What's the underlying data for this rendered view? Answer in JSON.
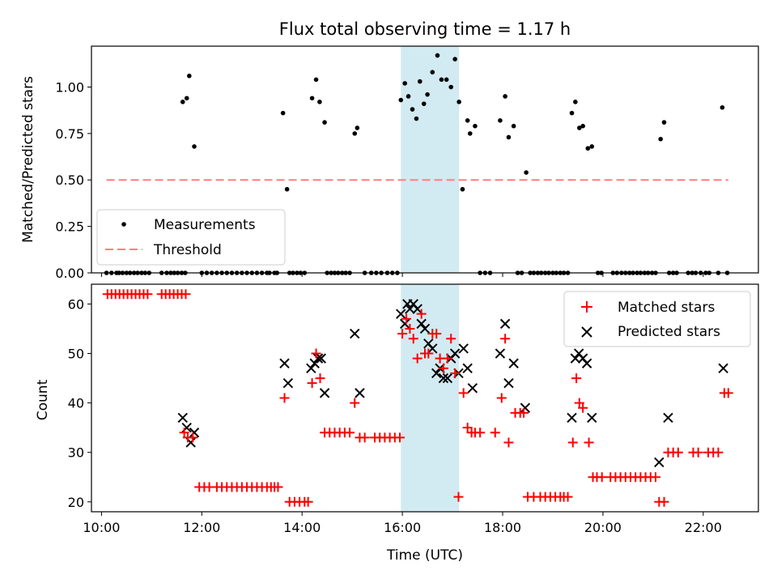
{
  "chart_data": {
    "type": "scatter",
    "title": "Flux total observing time = 1.17 h",
    "xlabel": "Time (UTC)",
    "colors": {
      "measurements": "#000000",
      "threshold": "#ff7f7f",
      "matched": "#ff0000",
      "predicted": "#000000",
      "highlight": "#add8e6"
    },
    "x_ticks": [
      "10:00",
      "12:00",
      "14:00",
      "16:00",
      "18:00",
      "20:00",
      "22:00"
    ],
    "xlim": [
      9.8,
      23.1
    ],
    "highlight_span": [
      15.97,
      17.13
    ],
    "top": {
      "ylabel": "Matched/Predicted stars",
      "ylim": [
        0,
        1.22
      ],
      "y_ticks": [
        "0.00",
        "0.25",
        "0.50",
        "0.75",
        "1.00"
      ],
      "threshold": {
        "name": "Threshold",
        "value": 0.5,
        "x_range": [
          10.1,
          22.5
        ]
      },
      "legend": {
        "placement": "bottom-left",
        "entries": [
          "Measurements",
          "Threshold"
        ]
      },
      "measurements": {
        "name": "Measurements",
        "x": [
          10.1,
          10.2,
          10.3,
          10.35,
          10.42,
          10.5,
          10.57,
          10.65,
          10.72,
          10.8,
          10.87,
          10.95,
          11.2,
          11.3,
          11.38,
          11.45,
          11.52,
          11.6,
          11.67,
          11.62,
          11.7,
          11.75,
          11.85,
          12.0,
          12.1,
          12.2,
          12.3,
          12.4,
          12.5,
          12.6,
          12.7,
          12.8,
          12.9,
          13.0,
          13.1,
          13.2,
          13.3,
          13.35,
          13.45,
          13.5,
          13.62,
          13.7,
          13.75,
          13.82,
          13.9,
          13.97,
          14.05,
          14.2,
          14.28,
          14.35,
          14.45,
          14.5,
          14.58,
          14.65,
          14.72,
          14.8,
          14.87,
          14.95,
          15.05,
          15.1,
          15.25,
          15.38,
          15.48,
          15.58,
          15.7,
          15.8,
          15.9,
          15.97,
          16.05,
          16.12,
          16.2,
          16.28,
          16.35,
          16.43,
          16.5,
          16.6,
          16.7,
          16.78,
          16.88,
          16.97,
          17.05,
          17.13,
          17.2,
          17.3,
          17.35,
          17.45,
          17.55,
          17.65,
          17.75,
          17.95,
          18.05,
          18.12,
          18.22,
          18.3,
          18.38,
          18.47,
          18.55,
          18.62,
          18.7,
          18.77,
          18.85,
          18.92,
          19.0,
          19.07,
          19.15,
          19.22,
          19.3,
          19.38,
          19.45,
          19.53,
          19.6,
          19.7,
          19.78,
          19.9,
          19.97,
          20.2,
          20.28,
          20.37,
          20.45,
          20.53,
          20.6,
          20.68,
          20.75,
          20.83,
          20.9,
          20.98,
          21.05,
          21.15,
          21.22,
          21.32,
          21.4,
          21.47,
          21.7,
          21.78,
          21.85,
          21.95,
          22.05,
          22.12,
          22.3,
          22.38,
          22.48
        ],
        "y": [
          0,
          0,
          0,
          0,
          0,
          0,
          0,
          0,
          0,
          0,
          0,
          0,
          0,
          0,
          0,
          0,
          0,
          0,
          0,
          0.92,
          0.94,
          1.06,
          0.68,
          0,
          0,
          0,
          0,
          0,
          0,
          0,
          0,
          0,
          0,
          0,
          0,
          0,
          0,
          0,
          0,
          0,
          0.86,
          0.45,
          0,
          0,
          0,
          0,
          0,
          0.94,
          1.04,
          0.92,
          0.81,
          0,
          0,
          0,
          0,
          0,
          0,
          0,
          0.75,
          0.78,
          0,
          0,
          0,
          0,
          0,
          0,
          0,
          0.93,
          1.02,
          0.95,
          0.88,
          0.83,
          1.03,
          0.91,
          0.96,
          1.08,
          1.17,
          1.04,
          1.04,
          1.0,
          1.15,
          0.92,
          0.45,
          0.82,
          0.75,
          0.79,
          0,
          0,
          0,
          0.82,
          0.95,
          0.73,
          0.79,
          0,
          0,
          0.54,
          0,
          0,
          0,
          0,
          0,
          0,
          0,
          0,
          0,
          0,
          0,
          0.86,
          0.92,
          0.78,
          0.79,
          0.67,
          0.68,
          0,
          0,
          0,
          0,
          0,
          0,
          0,
          0,
          0,
          0,
          0,
          0,
          0,
          0,
          0.72,
          0.81,
          0,
          0,
          0,
          0,
          0,
          0,
          0,
          0,
          0,
          0,
          0.89,
          0
        ]
      }
    },
    "bottom": {
      "ylabel": "Count",
      "ylim": [
        18,
        64
      ],
      "y_ticks": [
        "20",
        "30",
        "40",
        "50",
        "60"
      ],
      "legend": {
        "placement": "top-right",
        "entries": [
          "Matched stars",
          "Predicted stars"
        ]
      },
      "matched": {
        "name": "Matched stars",
        "x": [
          10.12,
          10.2,
          10.28,
          10.36,
          10.44,
          10.52,
          10.6,
          10.68,
          10.76,
          10.84,
          10.92,
          11.2,
          11.28,
          11.36,
          11.44,
          11.52,
          11.6,
          11.68,
          11.65,
          11.72,
          11.82,
          11.95,
          12.05,
          12.15,
          12.3,
          12.4,
          12.5,
          12.6,
          12.7,
          12.8,
          12.9,
          13.0,
          13.1,
          13.2,
          13.3,
          13.38,
          13.45,
          13.52,
          13.65,
          13.75,
          13.85,
          13.95,
          14.05,
          14.12,
          14.2,
          14.28,
          14.36,
          14.45,
          14.55,
          14.65,
          14.75,
          14.85,
          14.95,
          15.05,
          15.15,
          15.25,
          15.45,
          15.55,
          15.65,
          15.75,
          15.85,
          15.95,
          16.0,
          16.08,
          16.15,
          16.22,
          16.3,
          16.38,
          16.45,
          16.52,
          16.6,
          16.68,
          16.75,
          16.82,
          16.9,
          16.97,
          17.05,
          17.12,
          17.22,
          17.3,
          17.38,
          17.45,
          17.55,
          17.85,
          17.98,
          18.05,
          18.12,
          18.25,
          18.35,
          18.42,
          18.5,
          18.62,
          18.75,
          18.85,
          18.95,
          19.05,
          19.15,
          19.22,
          19.3,
          19.4,
          19.47,
          19.53,
          19.6,
          19.72,
          19.8,
          19.88,
          19.98,
          20.15,
          20.25,
          20.35,
          20.45,
          20.55,
          20.65,
          20.75,
          20.85,
          20.95,
          21.05,
          21.12,
          21.22,
          21.3,
          21.4,
          21.5,
          21.8,
          21.9,
          22.1,
          22.2,
          22.3,
          22.42,
          22.5
        ],
        "y": [
          62,
          62,
          62,
          62,
          62,
          62,
          62,
          62,
          62,
          62,
          62,
          62,
          62,
          62,
          62,
          62,
          62,
          62,
          34,
          33,
          33,
          23,
          23,
          23,
          23,
          23,
          23,
          23,
          23,
          23,
          23,
          23,
          23,
          23,
          23,
          23,
          23,
          23,
          41,
          20,
          20,
          20,
          20,
          20,
          44,
          50,
          45,
          34,
          34,
          34,
          34,
          34,
          34,
          40,
          33,
          33,
          33,
          33,
          33,
          33,
          33,
          33,
          54,
          57,
          55,
          53,
          49,
          58,
          50,
          50,
          54,
          54,
          49,
          47,
          49,
          53,
          46,
          21,
          42,
          35,
          34,
          34,
          34,
          34,
          41,
          53,
          32,
          38,
          38,
          38,
          21,
          21,
          21,
          21,
          21,
          21,
          21,
          21,
          21,
          32,
          45,
          40,
          39,
          32,
          25,
          25,
          25,
          25,
          25,
          25,
          25,
          25,
          25,
          25,
          25,
          25,
          25,
          20,
          20,
          30,
          30,
          30,
          30,
          30,
          30,
          30,
          30,
          42,
          42
        ]
      },
      "predicted": {
        "name": "Predicted stars",
        "x": [
          11.62,
          11.7,
          11.78,
          11.85,
          13.65,
          13.72,
          14.18,
          14.25,
          14.32,
          14.38,
          14.45,
          15.05,
          15.15,
          15.97,
          16.05,
          16.1,
          16.15,
          16.22,
          16.3,
          16.38,
          16.45,
          16.52,
          16.6,
          16.68,
          16.75,
          16.82,
          16.9,
          16.97,
          17.05,
          17.12,
          17.22,
          17.3,
          17.4,
          17.95,
          18.05,
          18.12,
          18.22,
          18.45,
          19.38,
          19.45,
          19.52,
          19.6,
          19.68,
          19.78,
          21.12,
          21.3,
          22.4
        ],
        "y": [
          37,
          35,
          32,
          34,
          48,
          44,
          47,
          48,
          49,
          49,
          42,
          54,
          42,
          58,
          56,
          60,
          59,
          60,
          59,
          56,
          55,
          52,
          51,
          46,
          47,
          45,
          45,
          49,
          50,
          46,
          51,
          47,
          43,
          50,
          56,
          44,
          48,
          39,
          37,
          49,
          50,
          49,
          48,
          37,
          28,
          37,
          47
        ]
      }
    }
  }
}
